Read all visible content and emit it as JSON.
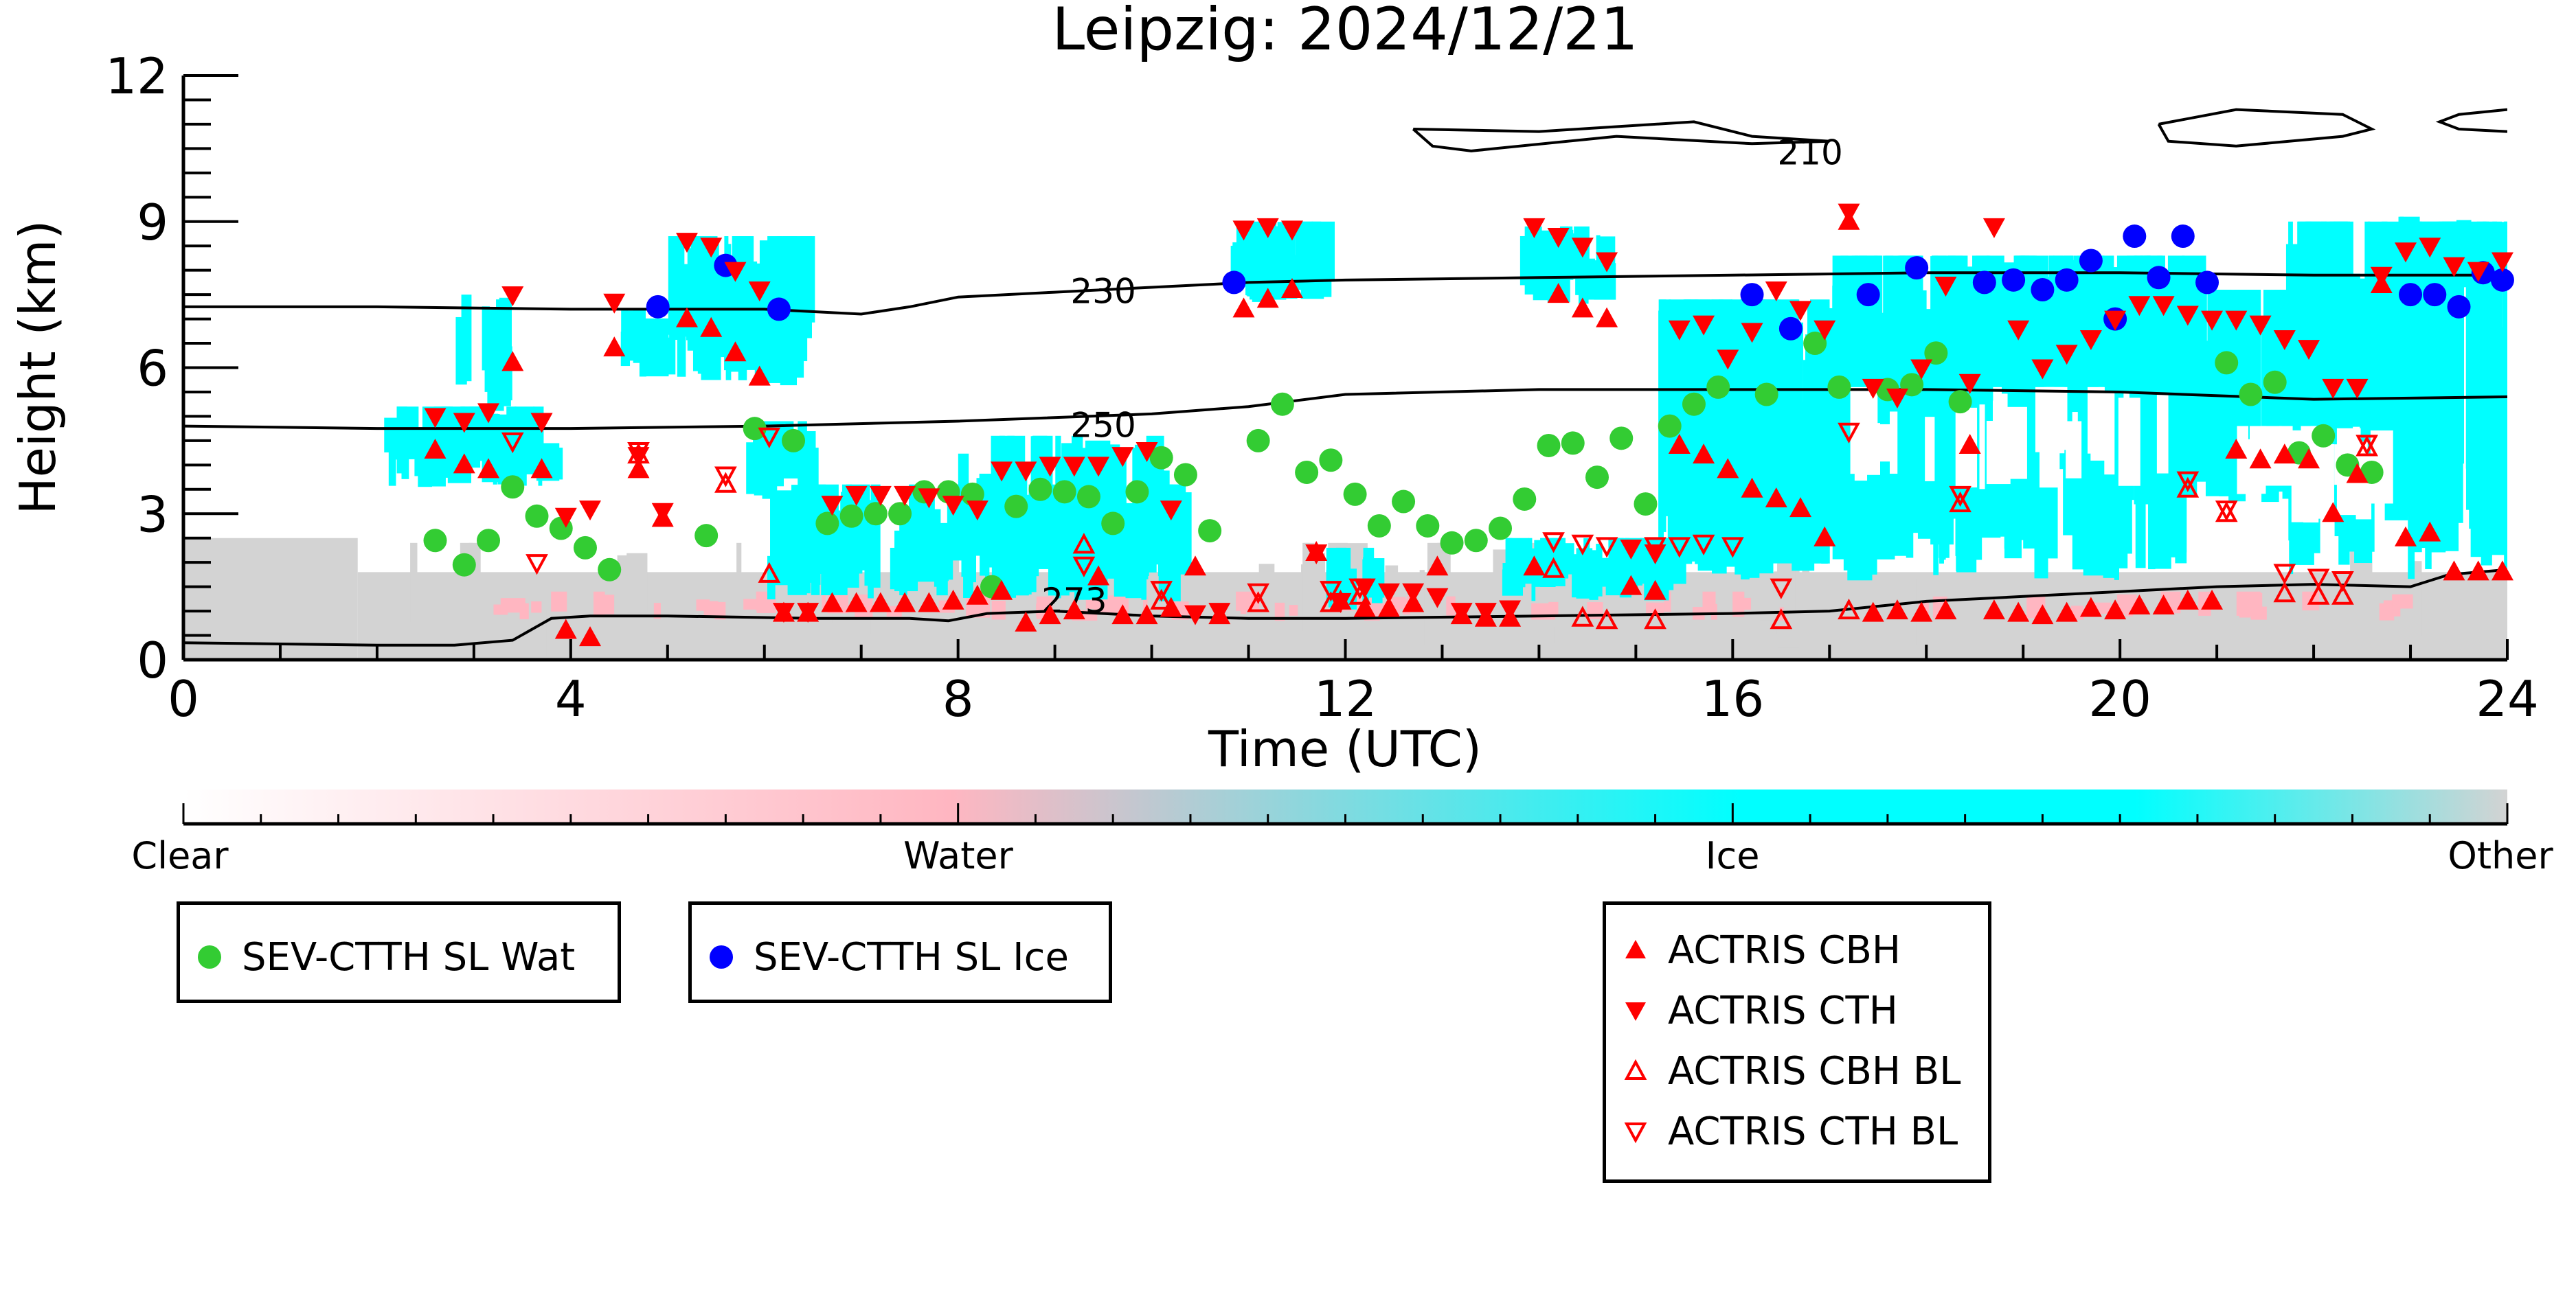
{
  "chart_data": {
    "type": "scatter",
    "title": "Leipzig: 2024/12/21",
    "xlabel": "Time (UTC)",
    "ylabel": "Height (km)",
    "xlim": [
      0,
      24
    ],
    "ylim": [
      0,
      12
    ],
    "x_ticks": [
      0,
      4,
      8,
      12,
      16,
      20,
      24
    ],
    "y_ticks": [
      0,
      3,
      6,
      9,
      12
    ],
    "grid": false,
    "background": {
      "type": "cloud phase classification",
      "colorbar_labels": [
        "Clear",
        "Water",
        "Ice",
        "Other"
      ],
      "colors": {
        "clear": "#ffffff",
        "water": "#ffb6c1",
        "ice": "#00ffff",
        "other": "#d3d3d3"
      }
    },
    "contours": [
      {
        "label": "210",
        "points": [
          [
            12.7,
            10.9
          ],
          [
            14,
            10.85
          ],
          [
            15.6,
            11.05
          ],
          [
            16.2,
            10.75
          ],
          [
            17,
            10.65
          ],
          [
            16.2,
            10.6
          ],
          [
            14.8,
            10.75
          ],
          [
            13.3,
            10.45
          ],
          [
            12.9,
            10.55
          ],
          [
            12.7,
            10.9
          ]
        ]
      },
      {
        "label": "210",
        "points": [
          [
            20.4,
            11.0
          ],
          [
            21.2,
            11.3
          ],
          [
            22.3,
            11.2
          ],
          [
            22.6,
            10.9
          ],
          [
            22.3,
            10.75
          ],
          [
            21.2,
            10.55
          ],
          [
            20.5,
            10.65
          ],
          [
            20.4,
            11.0
          ]
        ]
      },
      {
        "label": "210",
        "points": [
          [
            24,
            11.3
          ],
          [
            23.5,
            11.2
          ],
          [
            23.3,
            11.05
          ],
          [
            23.5,
            10.9
          ],
          [
            24,
            10.85
          ]
        ]
      },
      {
        "label": "230",
        "points": [
          [
            0,
            7.25
          ],
          [
            2,
            7.25
          ],
          [
            4,
            7.2
          ],
          [
            6,
            7.2
          ],
          [
            7,
            7.1
          ],
          [
            7.5,
            7.25
          ],
          [
            8,
            7.45
          ],
          [
            9,
            7.55
          ],
          [
            10,
            7.65
          ],
          [
            11,
            7.75
          ],
          [
            12,
            7.8
          ],
          [
            14,
            7.85
          ],
          [
            16,
            7.9
          ],
          [
            18,
            7.95
          ],
          [
            20,
            7.95
          ],
          [
            22,
            7.9
          ],
          [
            24,
            7.9
          ]
        ]
      },
      {
        "label": "250",
        "points": [
          [
            0,
            4.8
          ],
          [
            2,
            4.75
          ],
          [
            4,
            4.75
          ],
          [
            6,
            4.8
          ],
          [
            8,
            4.9
          ],
          [
            10,
            5.05
          ],
          [
            11,
            5.2
          ],
          [
            12,
            5.45
          ],
          [
            14,
            5.55
          ],
          [
            16,
            5.55
          ],
          [
            18,
            5.55
          ],
          [
            20,
            5.5
          ],
          [
            22,
            5.35
          ],
          [
            24,
            5.4
          ]
        ]
      },
      {
        "label": "273",
        "points": [
          [
            0,
            0.35
          ],
          [
            2,
            0.3
          ],
          [
            2.8,
            0.3
          ],
          [
            3.4,
            0.4
          ],
          [
            3.8,
            0.85
          ],
          [
            4.2,
            0.9
          ],
          [
            5,
            0.9
          ],
          [
            6.5,
            0.85
          ],
          [
            7.5,
            0.85
          ],
          [
            7.9,
            0.8
          ],
          [
            8.3,
            0.95
          ],
          [
            9,
            1.0
          ],
          [
            10,
            0.9
          ],
          [
            11,
            0.85
          ],
          [
            12,
            0.85
          ],
          [
            14,
            0.9
          ],
          [
            16,
            0.95
          ],
          [
            17,
            1.0
          ],
          [
            18,
            1.2
          ],
          [
            19,
            1.3
          ],
          [
            20,
            1.4
          ],
          [
            21,
            1.5
          ],
          [
            22,
            1.55
          ],
          [
            23,
            1.5
          ],
          [
            23.4,
            1.75
          ],
          [
            24,
            1.85
          ]
        ]
      }
    ],
    "series": [
      {
        "name": "SEV-CTTH SL Wat",
        "marker": "circle",
        "color": "#33cc33",
        "x": [
          2.6,
          2.9,
          3.15,
          3.4,
          3.65,
          3.9,
          4.15,
          4.4,
          5.4,
          5.9,
          6.3,
          6.65,
          6.9,
          7.15,
          7.4,
          7.65,
          7.9,
          8.15,
          8.35,
          8.6,
          8.85,
          9.1,
          9.35,
          9.6,
          9.85,
          10.1,
          10.35,
          10.6,
          11.1,
          11.35,
          11.6,
          11.85,
          12.1,
          12.35,
          12.6,
          12.85,
          13.1,
          13.35,
          13.6,
          13.85,
          14.1,
          14.35,
          14.6,
          14.85,
          15.1,
          15.35,
          15.6,
          15.85,
          16.35,
          16.85,
          17.1,
          17.6,
          17.85,
          18.1,
          18.35,
          21.1,
          21.35,
          21.6,
          21.85,
          22.1,
          22.35,
          22.6
        ],
        "y": [
          2.45,
          1.95,
          2.45,
          3.55,
          2.95,
          2.7,
          2.3,
          1.85,
          2.55,
          4.75,
          4.5,
          2.8,
          2.95,
          3.0,
          3.0,
          3.45,
          3.45,
          3.4,
          1.5,
          3.15,
          3.5,
          3.45,
          3.35,
          2.8,
          3.45,
          4.15,
          3.8,
          2.65,
          4.5,
          5.25,
          3.85,
          4.1,
          3.4,
          2.75,
          3.25,
          2.75,
          2.4,
          2.45,
          2.7,
          3.3,
          4.4,
          4.45,
          3.75,
          4.55,
          3.2,
          4.8,
          5.25,
          5.6,
          5.45,
          6.5,
          5.6,
          5.55,
          5.65,
          6.3,
          5.3,
          6.1,
          5.45,
          5.7,
          4.25,
          4.6,
          4.0,
          3.85
        ]
      },
      {
        "name": "SEV-CTTH SL Ice",
        "marker": "circle",
        "color": "#0000ff",
        "x": [
          4.9,
          5.6,
          6.15,
          10.85,
          16.2,
          16.6,
          17.4,
          17.9,
          18.6,
          18.9,
          19.2,
          19.45,
          19.7,
          19.95,
          20.15,
          20.4,
          20.65,
          20.9,
          23.0,
          23.25,
          23.5,
          23.75,
          23.95
        ],
        "y": [
          7.25,
          8.1,
          7.2,
          7.75,
          7.5,
          6.8,
          7.5,
          8.05,
          7.75,
          7.8,
          7.6,
          7.8,
          8.2,
          7.0,
          8.7,
          7.85,
          8.7,
          7.75,
          7.5,
          7.5,
          7.25,
          7.95,
          7.8
        ]
      },
      {
        "name": "ACTRIS CBH",
        "marker": "triangle-up",
        "color": "#ff0000",
        "x": [
          2.6,
          2.9,
          3.15,
          3.4,
          3.7,
          3.95,
          4.2,
          4.45,
          4.7,
          4.95,
          5.2,
          5.45,
          5.7,
          5.95,
          6.2,
          6.45,
          6.7,
          6.95,
          7.2,
          7.45,
          7.7,
          7.95,
          8.2,
          8.45,
          8.7,
          8.95,
          9.2,
          9.45,
          9.7,
          9.95,
          10.2,
          10.45,
          10.7,
          10.95,
          11.2,
          11.45,
          11.7,
          11.95,
          12.2,
          12.45,
          12.7,
          12.95,
          13.2,
          13.45,
          13.7,
          13.95,
          14.2,
          14.45,
          14.7,
          14.95,
          15.2,
          15.45,
          15.7,
          15.95,
          16.2,
          16.45,
          16.7,
          16.95,
          17.2,
          17.45,
          17.7,
          17.95,
          18.2,
          18.45,
          18.7,
          18.95,
          19.2,
          19.45,
          19.7,
          19.95,
          20.2,
          20.45,
          20.7,
          20.95,
          21.2,
          21.45,
          21.7,
          21.95,
          22.2,
          22.45,
          22.7,
          22.95,
          23.2,
          23.45,
          23.7,
          23.95
        ],
        "y": [
          4.3,
          4.0,
          3.9,
          6.1,
          3.9,
          0.6,
          0.45,
          6.4,
          3.9,
          2.9,
          7.0,
          6.8,
          6.3,
          5.8,
          0.95,
          0.95,
          1.15,
          1.15,
          1.15,
          1.15,
          1.15,
          1.2,
          1.3,
          1.4,
          0.75,
          0.9,
          1.0,
          1.7,
          0.9,
          0.9,
          1.05,
          1.9,
          0.9,
          7.2,
          7.4,
          7.6,
          2.2,
          1.2,
          1.05,
          1.05,
          1.15,
          1.9,
          0.9,
          0.85,
          0.85,
          1.9,
          7.5,
          7.2,
          7.0,
          1.5,
          1.4,
          4.4,
          4.2,
          3.9,
          3.5,
          3.3,
          3.1,
          2.5,
          9.0,
          0.95,
          1.0,
          0.95,
          1.0,
          4.4,
          1.0,
          0.95,
          0.9,
          0.95,
          1.05,
          1.0,
          1.1,
          1.1,
          1.2,
          1.2,
          4.3,
          4.1,
          4.2,
          4.1,
          3.0,
          3.8,
          7.7,
          2.5,
          2.6,
          1.8,
          1.8,
          1.8
        ]
      },
      {
        "name": "ACTRIS CTH",
        "marker": "triangle-down",
        "color": "#ff0000",
        "x": [
          2.6,
          2.9,
          3.15,
          3.4,
          3.7,
          3.95,
          4.2,
          4.45,
          4.7,
          4.95,
          5.2,
          5.45,
          5.7,
          5.95,
          6.2,
          6.45,
          6.7,
          6.95,
          7.2,
          7.45,
          7.7,
          7.95,
          8.2,
          8.45,
          8.7,
          8.95,
          9.2,
          9.45,
          9.7,
          9.95,
          10.2,
          10.45,
          10.7,
          10.95,
          11.2,
          11.45,
          11.7,
          11.95,
          12.2,
          12.45,
          12.7,
          12.95,
          13.2,
          13.45,
          13.7,
          13.95,
          14.2,
          14.45,
          14.7,
          14.95,
          15.2,
          15.45,
          15.7,
          15.95,
          16.2,
          16.45,
          16.7,
          16.95,
          17.2,
          17.45,
          17.7,
          17.95,
          18.2,
          18.45,
          18.7,
          18.95,
          19.2,
          19.45,
          19.7,
          19.95,
          20.2,
          20.45,
          20.7,
          20.95,
          21.2,
          21.45,
          21.7,
          21.95,
          22.2,
          22.45,
          22.7,
          22.95,
          23.2,
          23.45,
          23.7,
          23.95
        ],
        "y": [
          5.0,
          4.9,
          5.1,
          7.5,
          4.9,
          2.95,
          3.1,
          7.35,
          4.2,
          3.05,
          8.6,
          8.5,
          8.0,
          7.6,
          1.0,
          1.0,
          3.2,
          3.4,
          3.4,
          3.4,
          3.35,
          3.2,
          3.1,
          3.9,
          3.9,
          4.0,
          4.0,
          4.0,
          4.2,
          4.3,
          3.1,
          0.95,
          1.0,
          8.85,
          8.9,
          8.85,
          2.2,
          1.2,
          1.5,
          1.4,
          1.4,
          1.3,
          1.0,
          1.0,
          1.05,
          8.9,
          8.7,
          8.5,
          8.2,
          2.3,
          2.2,
          6.8,
          6.9,
          6.2,
          6.75,
          7.6,
          7.2,
          6.8,
          9.2,
          5.6,
          5.4,
          6.0,
          7.7,
          5.7,
          8.9,
          6.8,
          6.0,
          6.3,
          6.6,
          7.0,
          7.3,
          7.3,
          7.1,
          7.0,
          7.0,
          6.9,
          6.6,
          6.4,
          5.6,
          5.6,
          7.9,
          8.4,
          8.5,
          8.1,
          8.0,
          8.2
        ]
      },
      {
        "name": "ACTRIS CBH BL",
        "marker": "triangle-up-open",
        "color": "#ff0000",
        "x": [
          4.7,
          5.6,
          6.05,
          9.3,
          10.1,
          11.1,
          11.85,
          12.15,
          14.15,
          14.45,
          14.7,
          15.2,
          16.5,
          17.2,
          18.35,
          20.7,
          21.1,
          21.7,
          22.05,
          22.3,
          22.55
        ],
        "y": [
          4.2,
          3.6,
          1.75,
          2.35,
          1.2,
          1.15,
          1.15,
          1.3,
          1.85,
          0.85,
          0.8,
          0.8,
          0.8,
          1.0,
          3.2,
          3.5,
          3.0,
          1.35,
          1.3,
          1.3,
          4.35
        ]
      },
      {
        "name": "ACTRIS CTH BL",
        "marker": "triangle-down-open",
        "color": "#ff0000",
        "x": [
          3.4,
          3.65,
          4.7,
          5.6,
          6.05,
          9.3,
          10.1,
          11.1,
          11.85,
          12.15,
          14.15,
          14.45,
          14.7,
          15.2,
          15.45,
          15.7,
          16.0,
          16.5,
          17.2,
          18.35,
          20.7,
          21.1,
          21.7,
          22.05,
          22.3,
          22.55
        ],
        "y": [
          4.5,
          2.0,
          4.3,
          3.8,
          4.6,
          1.95,
          1.45,
          1.4,
          1.45,
          1.5,
          2.45,
          2.4,
          2.35,
          2.35,
          2.35,
          2.4,
          2.35,
          1.5,
          4.7,
          3.4,
          3.7,
          3.1,
          1.8,
          1.7,
          1.65,
          4.45
        ]
      }
    ]
  },
  "legend": {
    "sev": [
      {
        "label": "SEV-CTTH SL Wat",
        "marker": "circle",
        "color": "#33cc33"
      },
      {
        "label": "SEV-CTTH SL Ice",
        "marker": "circle",
        "color": "#0000ff"
      }
    ],
    "actris": [
      {
        "label": "ACTRIS CBH",
        "marker": "triangle-up"
      },
      {
        "label": "ACTRIS CTH",
        "marker": "triangle-down"
      },
      {
        "label": "ACTRIS CBH BL",
        "marker": "triangle-up-open"
      },
      {
        "label": "ACTRIS CTH BL",
        "marker": "triangle-down-open"
      }
    ]
  }
}
